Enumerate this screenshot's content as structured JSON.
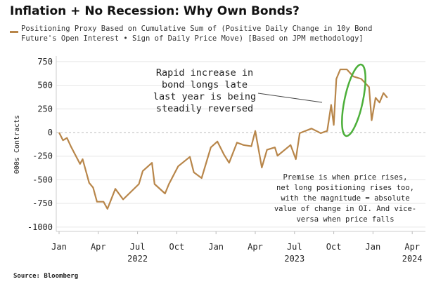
{
  "chart_data": {
    "type": "line",
    "title": "Inflation + No Recession: Why Own Bonds?",
    "legend": [
      "Positioning Proxy Based on Cumulative Sum of (Positive Daily Change in 10y Bond",
      "Future's Open Interest • Sign of Daily Price Move) [Based on JPM methodology]"
    ],
    "legend_placement": "top-left",
    "ylabel": "000s Contracts",
    "xlabel": "",
    "ylim": [
      -1000,
      750
    ],
    "xlim_months_from_jan_2022": [
      0,
      27.3
    ],
    "yticks": [
      "750",
      "500",
      "250",
      "0",
      "-250",
      "-500",
      "-750",
      "-1000"
    ],
    "ytick_values": [
      750,
      500,
      250,
      0,
      -250,
      -500,
      -750,
      -1000
    ],
    "xticks": [
      {
        "month": 0,
        "label": "Jan"
      },
      {
        "month": 3,
        "label": "Apr"
      },
      {
        "month": 6,
        "label": "Jul"
      },
      {
        "month": 9,
        "label": "Oct"
      },
      {
        "month": 12,
        "label": "Jan"
      },
      {
        "month": 15,
        "label": "Apr"
      },
      {
        "month": 18,
        "label": "Jul"
      },
      {
        "month": 21,
        "label": "Oct"
      },
      {
        "month": 24,
        "label": "Jan"
      },
      {
        "month": 27,
        "label": "Apr"
      }
    ],
    "year_labels": [
      {
        "month": 6,
        "label": "2022"
      },
      {
        "month": 18,
        "label": "2023"
      },
      {
        "month": 27,
        "label": "2024"
      }
    ],
    "grid": true,
    "series": [
      {
        "name": "Positioning Proxy",
        "color": "#b8864a",
        "x_months_from_jan_2022": [
          0,
          0.3,
          0.6,
          0.9,
          1.6,
          1.8,
          2.3,
          2.6,
          2.9,
          3.4,
          3.7,
          4.3,
          4.9,
          6.1,
          6.4,
          7.1,
          7.3,
          8.1,
          8.4,
          9.1,
          10.0,
          10.3,
          10.9,
          11.6,
          12.1,
          12.6,
          13.0,
          13.6,
          14.1,
          14.7,
          15.0,
          15.5,
          15.9,
          16.5,
          16.7,
          17.7,
          18.1,
          18.4,
          19.3,
          20.0,
          20.5,
          20.8,
          21.0,
          21.2,
          21.5,
          22.0,
          22.5,
          23.1,
          23.7,
          23.9,
          24.2,
          24.5,
          24.8,
          25.1
        ],
        "values": [
          0,
          -82,
          -57,
          -145,
          -332,
          -282,
          -532,
          -582,
          -732,
          -732,
          -807,
          -595,
          -707,
          -545,
          -407,
          -320,
          -545,
          -645,
          -545,
          -357,
          -257,
          -420,
          -482,
          -157,
          -95,
          -232,
          -320,
          -107,
          -132,
          -145,
          17,
          -370,
          -182,
          -157,
          -245,
          -132,
          -282,
          -7,
          42,
          -7,
          17,
          292,
          80,
          567,
          667,
          667,
          592,
          567,
          480,
          130,
          367,
          317,
          417,
          367
        ]
      }
    ],
    "annotations": [
      "Rapid increase in bond longs late last year is being steadily reversed",
      "Premise is when price rises, net long positioning rises too, with the magnitude = absolute value of change in OI. And vice-versa when price falls"
    ],
    "annotation_lines": {
      "a1": [
        "Rapid increase in",
        "bond longs late",
        "last year is being",
        "steadily reversed"
      ],
      "a2": [
        "Premise is when price rises,",
        "net long positioning rises too,",
        "with the magnitude = absolute",
        "value of change in OI. And vice-",
        "versa when price falls"
      ]
    },
    "highlight_color": "#4caf3a"
  },
  "source": "Source: Bloomberg"
}
